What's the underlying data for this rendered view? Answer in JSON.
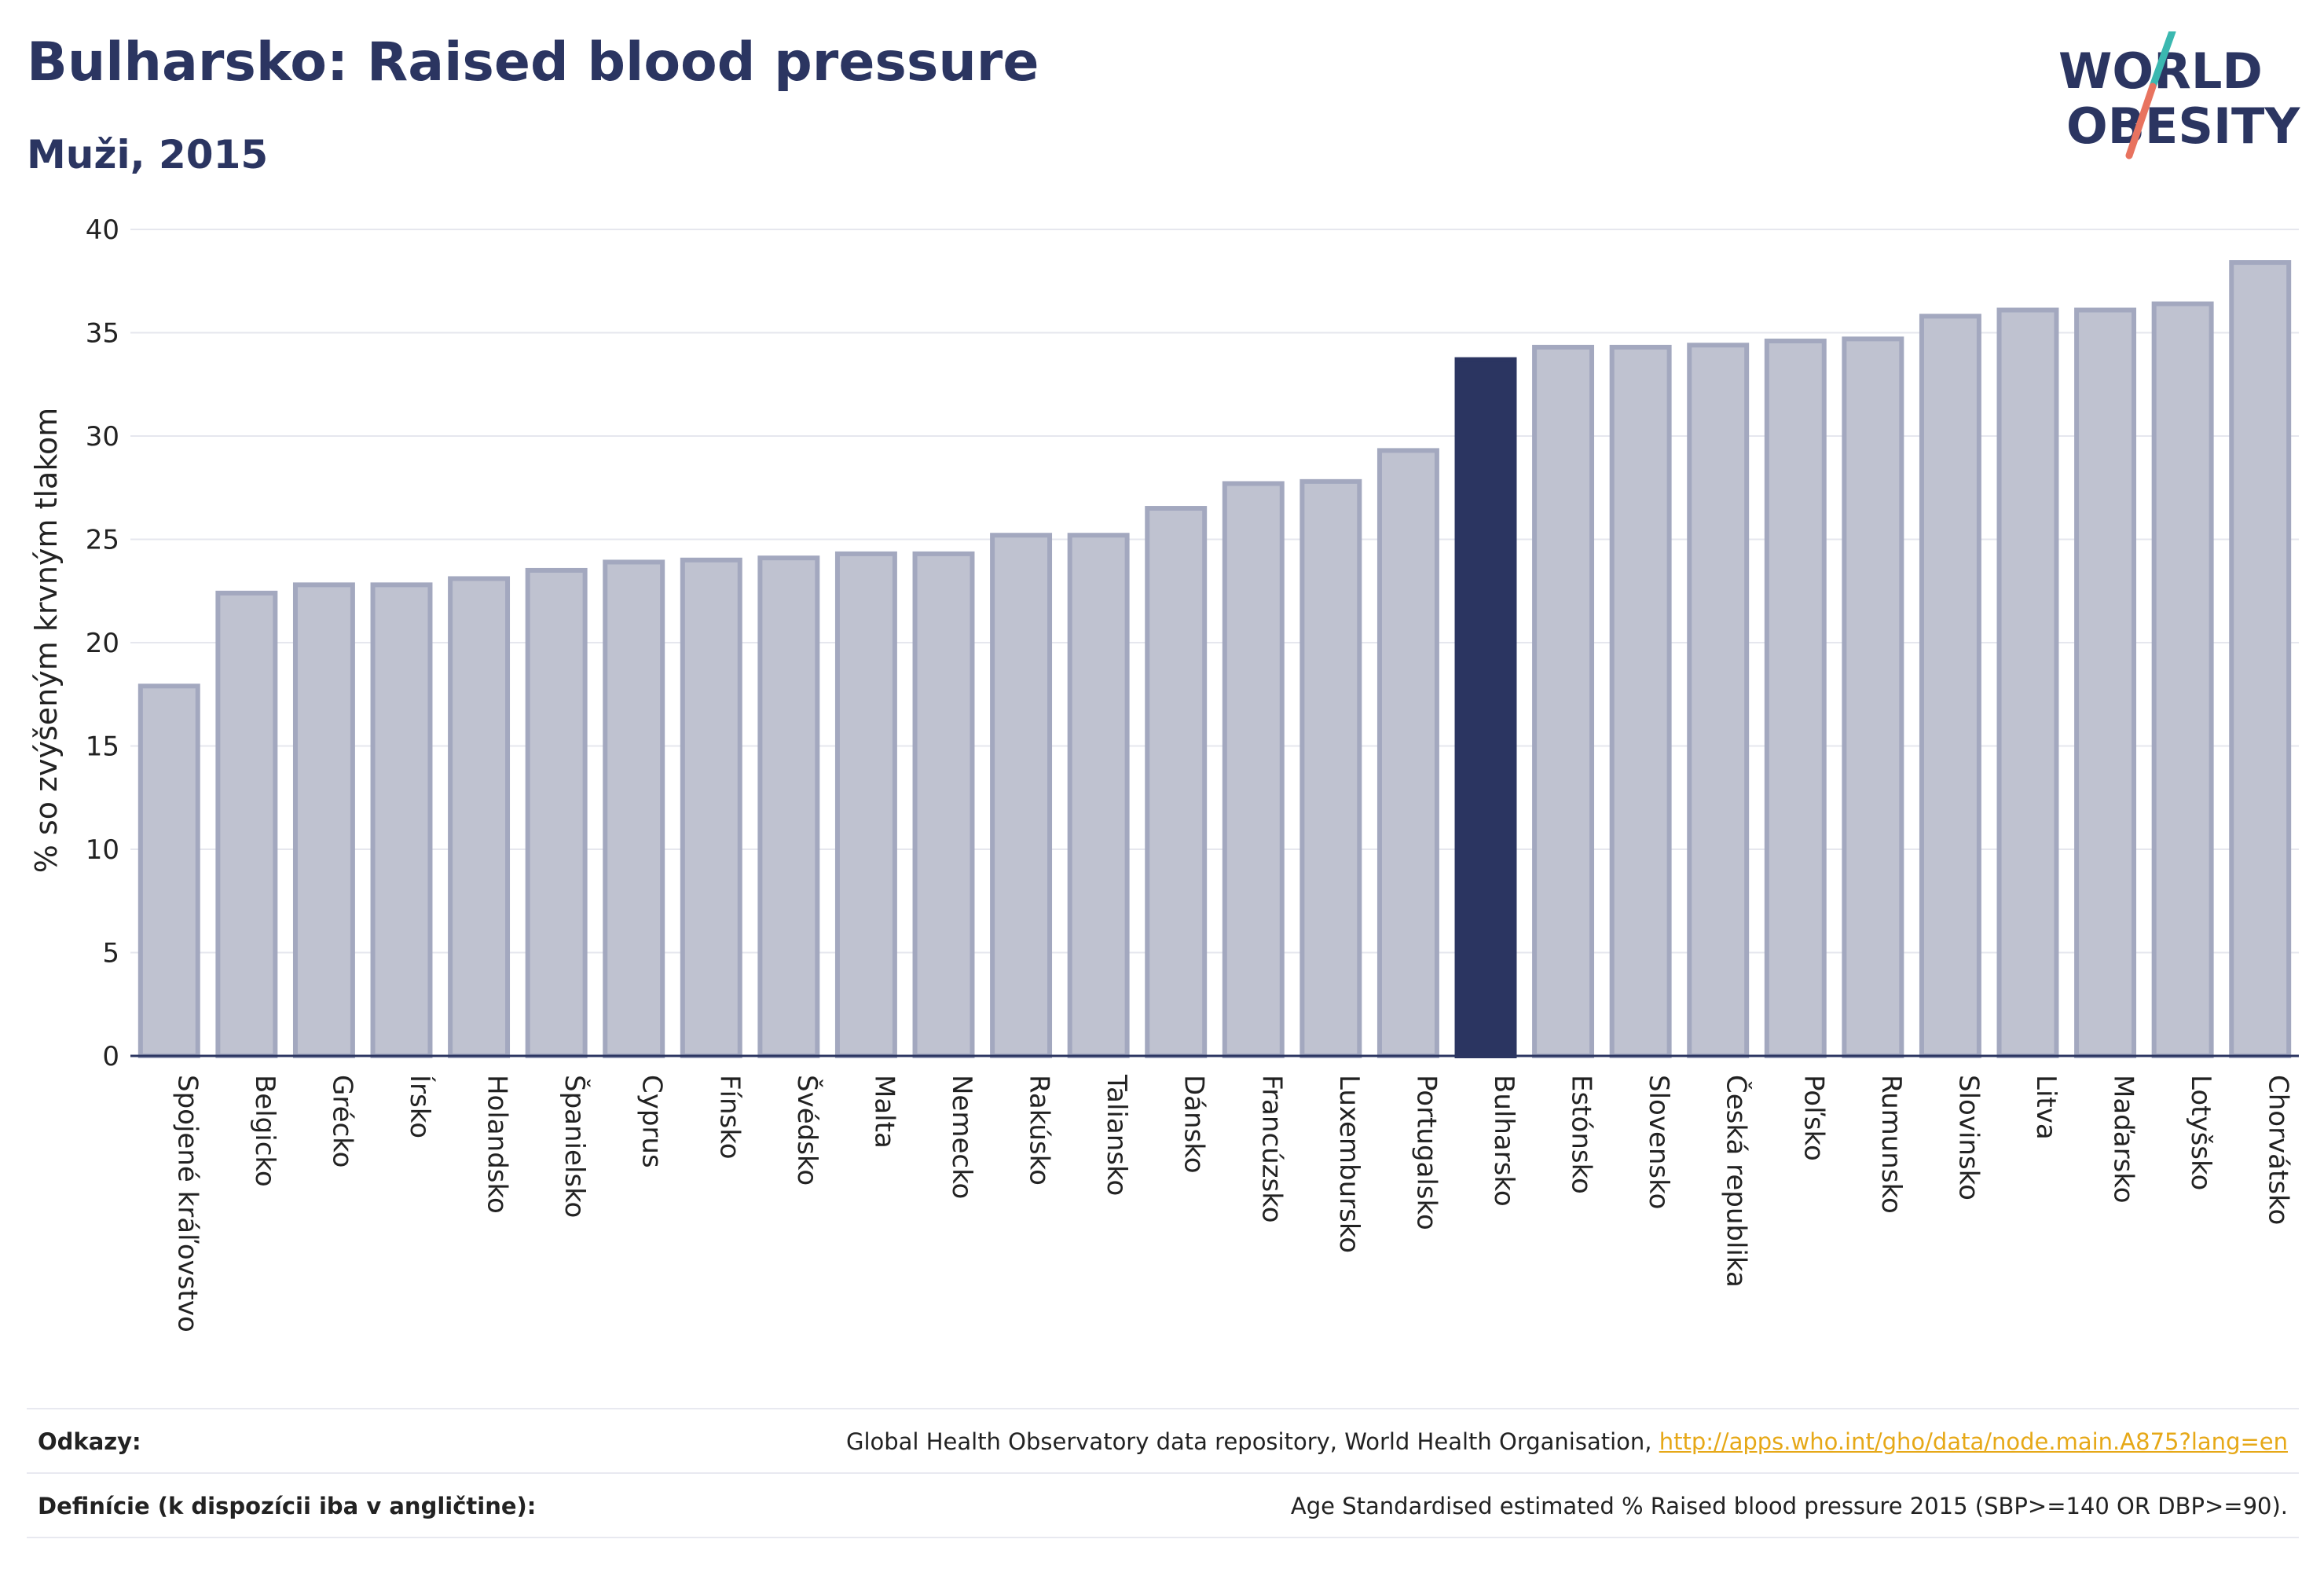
{
  "header": {
    "title": "Bulharsko: Raised blood pressure",
    "subtitle": "Muži, 2015"
  },
  "logo": {
    "line1": "WORLD",
    "line2": "OBESITY"
  },
  "colors": {
    "highlight": "#2b3561",
    "bar_fill": "#bfc2d0",
    "bar_stroke": "#a3a8bf",
    "grid": "#e6e7ee",
    "link": "#e6a817",
    "logo_teal": "#3bb8b0",
    "logo_coral": "#e8735f"
  },
  "chart_data": {
    "type": "bar",
    "ylabel": "% so zvýšeným krvným tlakom",
    "ylim": [
      0,
      40
    ],
    "yticks": [
      0,
      5,
      10,
      15,
      20,
      25,
      30,
      35,
      40
    ],
    "grid": true,
    "highlight_category": "Bulharsko",
    "categories": [
      "Spojené kráľovstvo",
      "Belgicko",
      "Grécko",
      "Írsko",
      "Holandsko",
      "Španielsko",
      "Cyprus",
      "Fínsko",
      "Švédsko",
      "Malta",
      "Nemecko",
      "Rakúsko",
      "Taliansko",
      "Dánsko",
      "Francúzsko",
      "Luxembursko",
      "Portugalsko",
      "Bulharsko",
      "Estónsko",
      "Slovensko",
      "Česká republika",
      "Poľsko",
      "Rumunsko",
      "Slovinsko",
      "Litva",
      "Maďarsko",
      "Lotyšsko",
      "Chorvátsko"
    ],
    "values": [
      17.9,
      22.4,
      22.8,
      22.8,
      23.1,
      23.5,
      23.9,
      24.0,
      24.1,
      24.3,
      24.3,
      25.2,
      25.2,
      26.5,
      27.7,
      27.8,
      29.3,
      33.7,
      34.3,
      34.3,
      34.4,
      34.6,
      34.7,
      35.8,
      36.1,
      36.1,
      36.4,
      38.4
    ]
  },
  "footer": {
    "sources_label": "Odkazy:",
    "sources_text": "Global Health Observatory data repository, World Health Organisation,",
    "sources_link": "http://apps.who.int/gho/data/node.main.A875?lang=en",
    "definitions_label": "Definície (k dispozícii iba v angličtine):",
    "definitions_text": "Age Standardised estimated % Raised blood pressure 2015 (SBP>=140 OR DBP>=90)."
  }
}
